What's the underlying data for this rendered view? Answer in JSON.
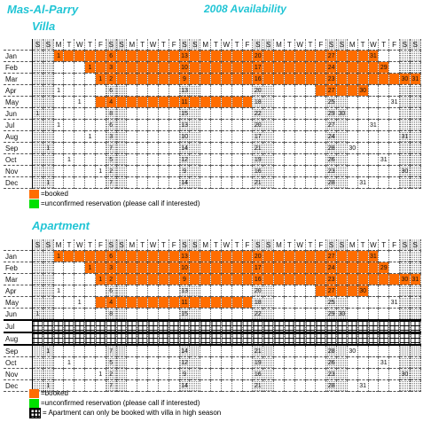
{
  "header": {
    "title": "Mas-Al-Parry",
    "year_title": "2008  Availability"
  },
  "colors": {
    "heading": "#22c5d5",
    "booked": "#ff6d00",
    "unconfirmed": "#00e000"
  },
  "day_letters": [
    "S",
    "S",
    "M",
    "T",
    "W",
    "T",
    "F",
    "S",
    "S",
    "M",
    "T",
    "W",
    "T",
    "F",
    "S",
    "S",
    "M",
    "T",
    "W",
    "T",
    "F",
    "S",
    "S",
    "M",
    "T",
    "W",
    "T",
    "F",
    "S",
    "S",
    "M",
    "T",
    "W",
    "T",
    "F",
    "S",
    "S"
  ],
  "months": [
    "Jan",
    "Feb",
    "Mar",
    "Apr",
    "May",
    "Jun",
    "Jul",
    "Aug",
    "Sep",
    "Oct",
    "Nov",
    "Dec"
  ],
  "first_dow": [
    2,
    5,
    6,
    2,
    4,
    0,
    2,
    5,
    1,
    3,
    6,
    1
  ],
  "month_days": [
    31,
    29,
    31,
    30,
    31,
    30,
    31,
    31,
    30,
    31,
    30,
    31
  ],
  "villa": {
    "title": "Villa",
    "booked": [
      [
        1,
        31
      ],
      [
        1,
        29
      ],
      [
        1,
        31
      ],
      [
        26,
        30
      ],
      [
        3,
        17
      ],
      [],
      [],
      [],
      [],
      [],
      [],
      []
    ],
    "unconfirmed": [
      [],
      [],
      [],
      [],
      [],
      [],
      [],
      [],
      [],
      [],
      [],
      []
    ],
    "high_season": []
  },
  "apartment": {
    "title": "Apartment",
    "booked": [
      [
        1,
        31
      ],
      [
        1,
        29
      ],
      [
        1,
        31
      ],
      [
        26,
        30
      ],
      [
        3,
        17
      ],
      [],
      [],
      [],
      [],
      [],
      [],
      []
    ],
    "unconfirmed": [
      [],
      [],
      [],
      [],
      [],
      [],
      [],
      [],
      [],
      [],
      [],
      []
    ],
    "high_season": [
      6,
      7
    ]
  },
  "legend_villa": {
    "booked": "=booked",
    "unconfirmed": "=unconfirmed reservation (please call if interested)"
  },
  "legend_apartment": {
    "booked": "=booked",
    "unconfirmed": "=unconfirmed reservation (please call if interested)",
    "high_season": "= Apartment can only be booked with villa in high season"
  }
}
